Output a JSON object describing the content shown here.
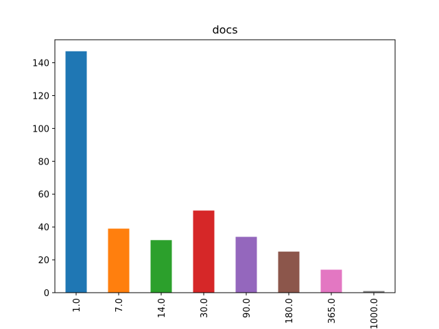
{
  "chart_data": {
    "type": "bar",
    "title": "docs",
    "xlabel": "",
    "ylabel": "",
    "categories": [
      "1.0",
      "7.0",
      "14.0",
      "30.0",
      "90.0",
      "180.0",
      "365.0",
      "1000.0"
    ],
    "values": [
      147,
      39,
      32,
      50,
      34,
      25,
      14,
      1
    ],
    "colors": [
      "#1f77b4",
      "#ff7f0e",
      "#2ca02c",
      "#d62728",
      "#9467bd",
      "#8c564b",
      "#e377c2",
      "#7f7f7f"
    ],
    "ylim": [
      0,
      154
    ],
    "yticks": [
      0,
      20,
      40,
      60,
      80,
      100,
      120,
      140
    ],
    "ytick_labels": [
      "0",
      "20",
      "40",
      "60",
      "80",
      "100",
      "120",
      "140"
    ],
    "grid": false,
    "legend": false
  }
}
